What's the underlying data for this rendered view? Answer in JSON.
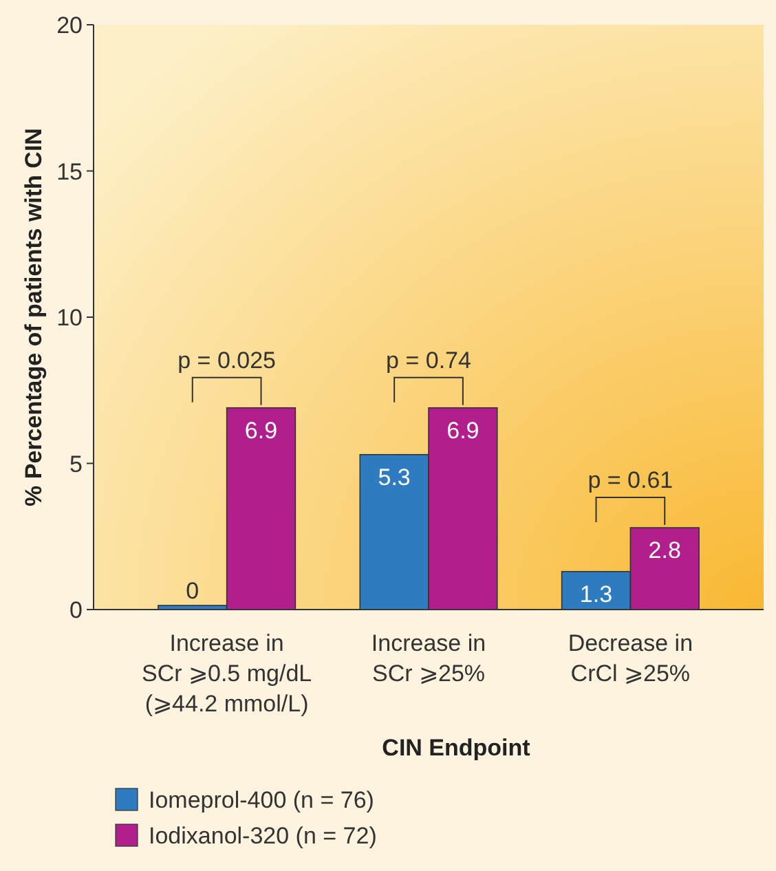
{
  "chart_data": {
    "type": "bar",
    "xlabel": "CIN Endpoint",
    "ylabel": "% Percentage of patients with CIN",
    "categories": [
      "Increase in\nSCr ⩾0.5 mg/dL\n(⩾44.2 mmol/L)",
      "Increase in\nSCr ⩾25%",
      "Decrease in\nCrCl ⩾25%"
    ],
    "series": [
      {
        "name": "Iomeprol-400 (n = 76)",
        "color": "#2e7bc0",
        "values": [
          0,
          5.3,
          1.3
        ]
      },
      {
        "name": "Iodixanol-320 (n = 72)",
        "color": "#b01f8c",
        "values": [
          6.9,
          6.9,
          2.8
        ]
      }
    ],
    "ylim": [
      0,
      20
    ],
    "yticks": [
      0,
      5,
      10,
      15,
      20
    ],
    "data_labels": true,
    "legend": "bottom",
    "grid": false,
    "annotations": [
      "p = 0.025",
      "p = 0.74",
      "p = 0.61"
    ]
  }
}
